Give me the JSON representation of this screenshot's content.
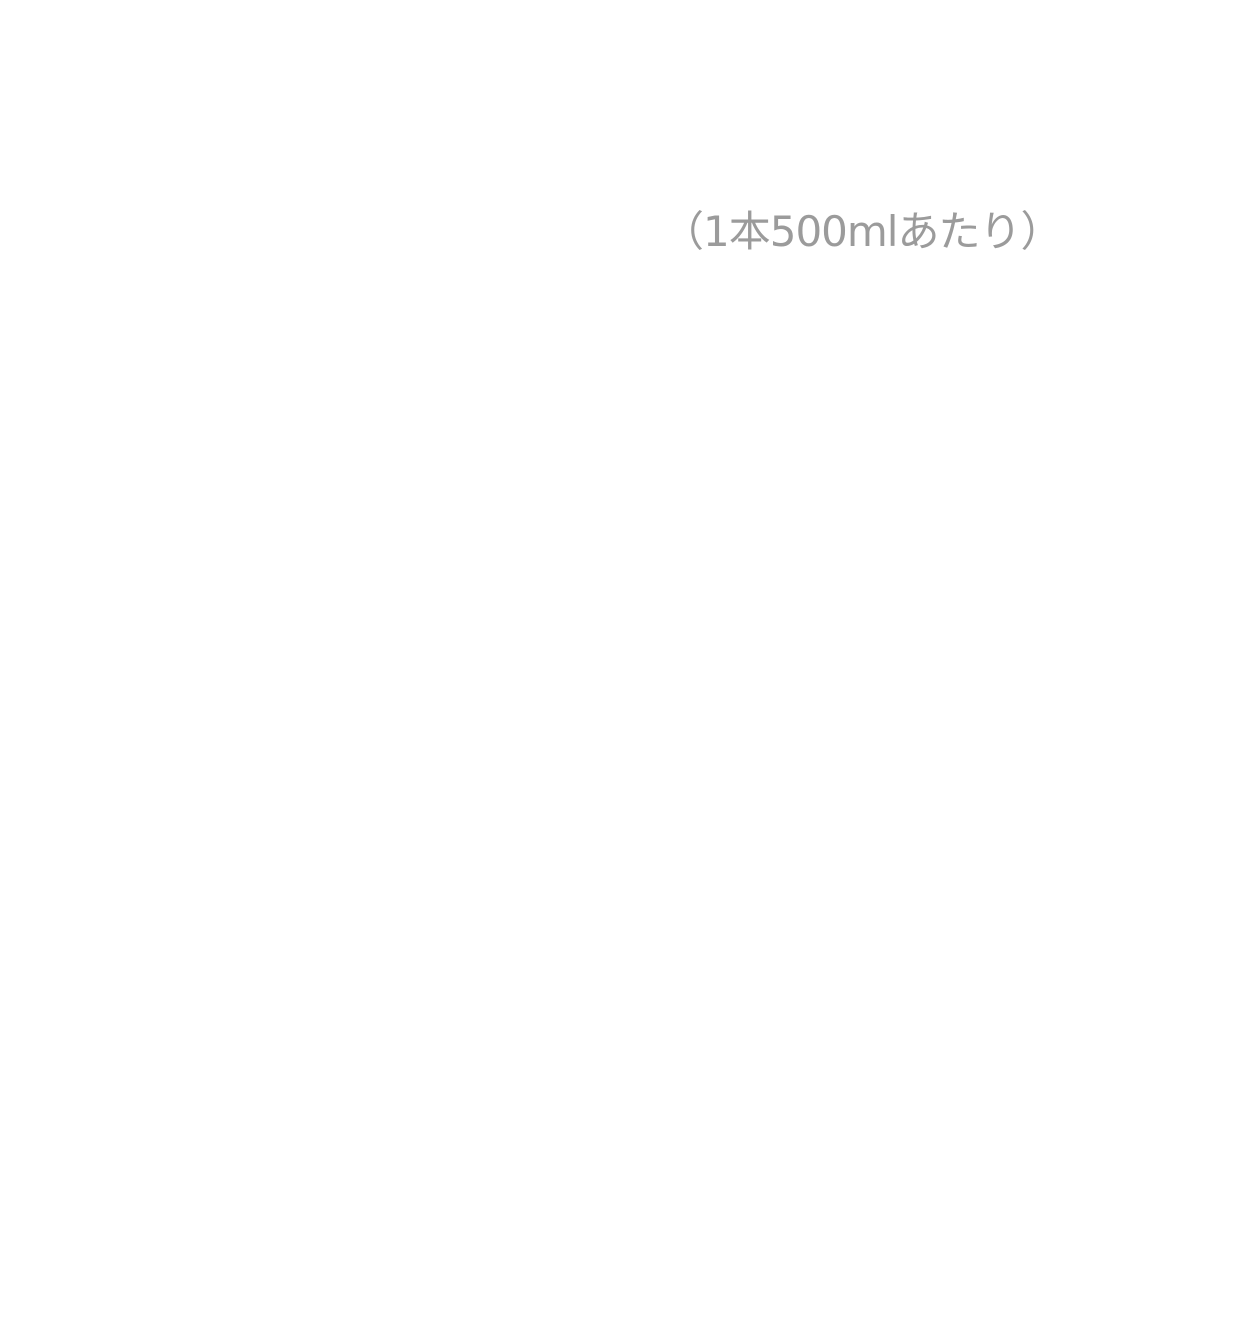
{
  "caption": {
    "text": "（1本500mlあたり）",
    "color": "#9b9b9b"
  }
}
